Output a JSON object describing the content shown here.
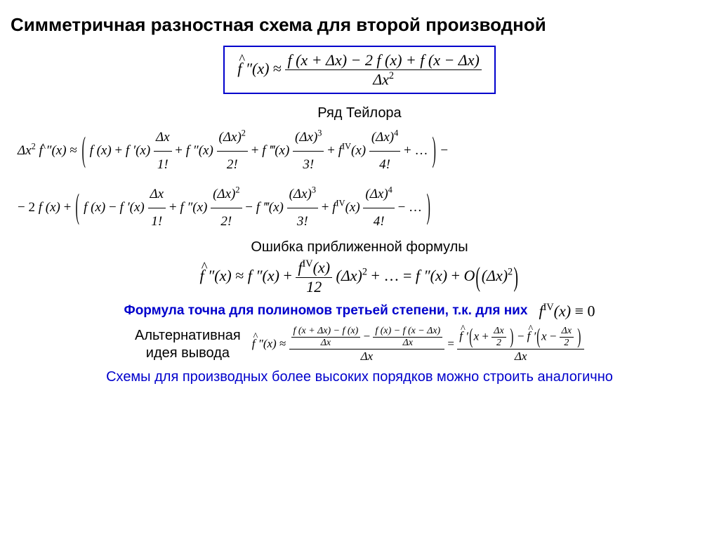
{
  "title": "Симметричная разностная схема для второй производной",
  "main_formula": {
    "lhs": "f̂″(x) ≈",
    "num": "f (x + Δx) − 2 f (x) + f (x − Δx)",
    "den": "Δx²"
  },
  "taylor_heading": "Ряд Тейлора",
  "taylor_line1_prefix": "Δx² f̂″(x) ≈",
  "taylor_series_terms": {
    "t0": "f (x)",
    "t1_coef": "f ′(x)",
    "t1_num": "Δx",
    "t1_den": "1!",
    "t2_coef": "f ″(x)",
    "t2_num": "(Δx)²",
    "t2_den": "2!",
    "t3_coef": "f ‴(x)",
    "t3_num": "(Δx)³",
    "t3_den": "3!",
    "t4_coef_long": "f ᴵⱽ(x)",
    "t4_coef": "f",
    "t4_sup": "IV",
    "t4_arg": "(x)",
    "t4_num": "(Δx)⁴",
    "t4_den": "4!",
    "dots": "…"
  },
  "taylor_line2_prefix": "− 2 f (x) +",
  "error_heading": "Ошибка приближенной формулы",
  "error_formula": {
    "lhs": "f̂″(x) ≈ f ″(x) +",
    "frac_num_sup": "IV",
    "frac_num_arg": "(x)",
    "frac_den": "12",
    "mid": "(Δx)² + … = f ″(x) + O",
    "big_arg": "(Δx)²"
  },
  "blue_statement": "Формула точна для полиномов третьей степени, т.к. для них",
  "blue_identity": {
    "f": "f",
    "sup": "IV",
    "arg": "(x) ≡ 0"
  },
  "alt_label_l1": "Альтернативная",
  "alt_label_l2": "идея вывода",
  "alt_formula": {
    "lhs": "f̂″(x) ≈",
    "inner_left_num": "f (x + Δx) − f (x)",
    "inner_left_den": "Δx",
    "inner_right_num": "f (x) − f (x − Δx)",
    "inner_right_den": "Δx",
    "outer_den": "Δx",
    "eq": "=",
    "rhs_num_left_f": "f̂ ′",
    "rhs_num_left_arg_x": "x +",
    "rhs_num_frac_num": "Δx",
    "rhs_num_frac_den": "2",
    "rhs_num_right_f": "f̂ ′",
    "rhs_num_right_arg_x": "x −",
    "rhs_den": "Δx"
  },
  "conclusion": "Схемы для производных более высоких порядков можно строить аналогично",
  "colors": {
    "box_border": "#0000cc",
    "blue_text": "#0000cc",
    "black": "#000000",
    "background": "#ffffff"
  }
}
